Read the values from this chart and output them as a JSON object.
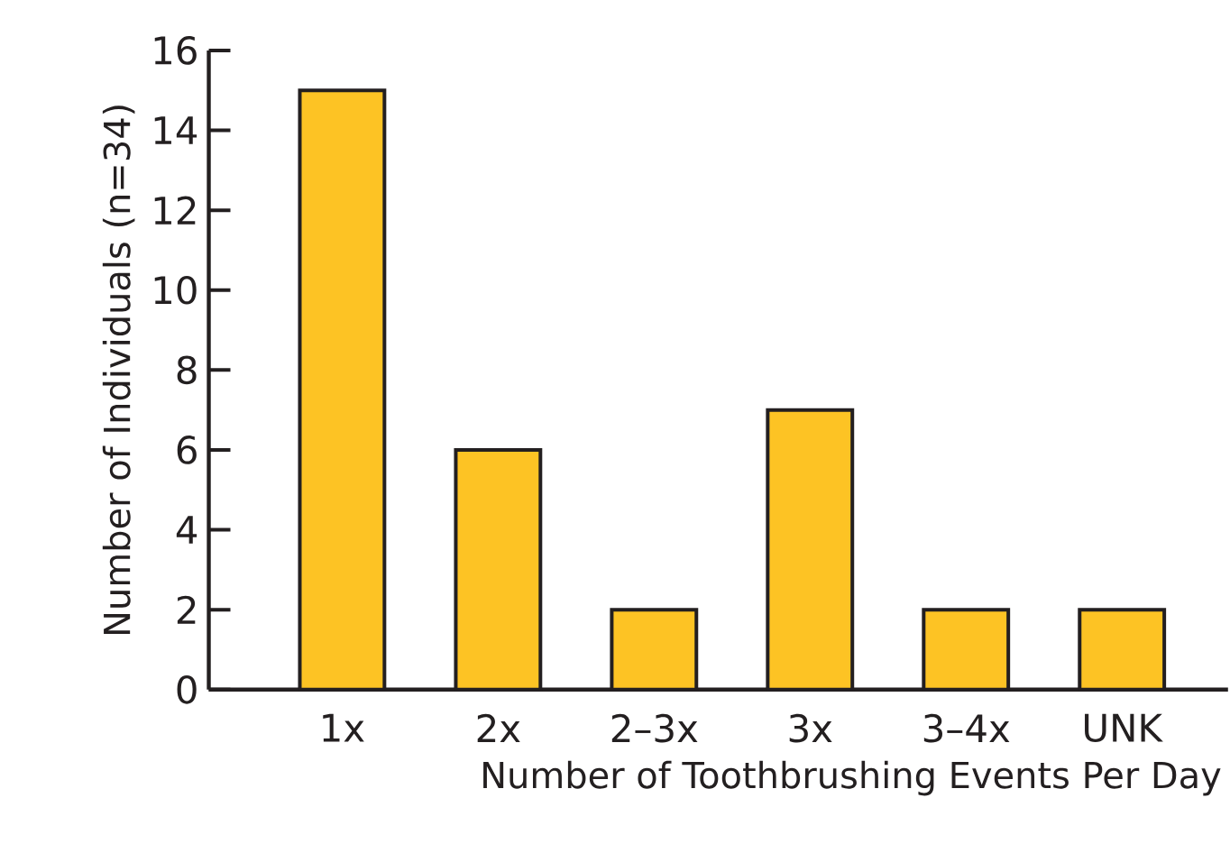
{
  "chart_data": {
    "type": "bar",
    "xlabel": "Number of Toothbrushing Events Per Day",
    "ylabel": "Number of Individuals (n=34)",
    "categories": [
      "1x",
      "2x",
      "2–3x",
      "3x",
      "3–4x",
      "UNK"
    ],
    "values": [
      15,
      6,
      2,
      7,
      2,
      2
    ],
    "color": "#fdc324",
    "ylim": [
      0,
      16
    ],
    "yticks": [
      0,
      2,
      4,
      6,
      8,
      10,
      12,
      14,
      16
    ],
    "grid": false
  }
}
